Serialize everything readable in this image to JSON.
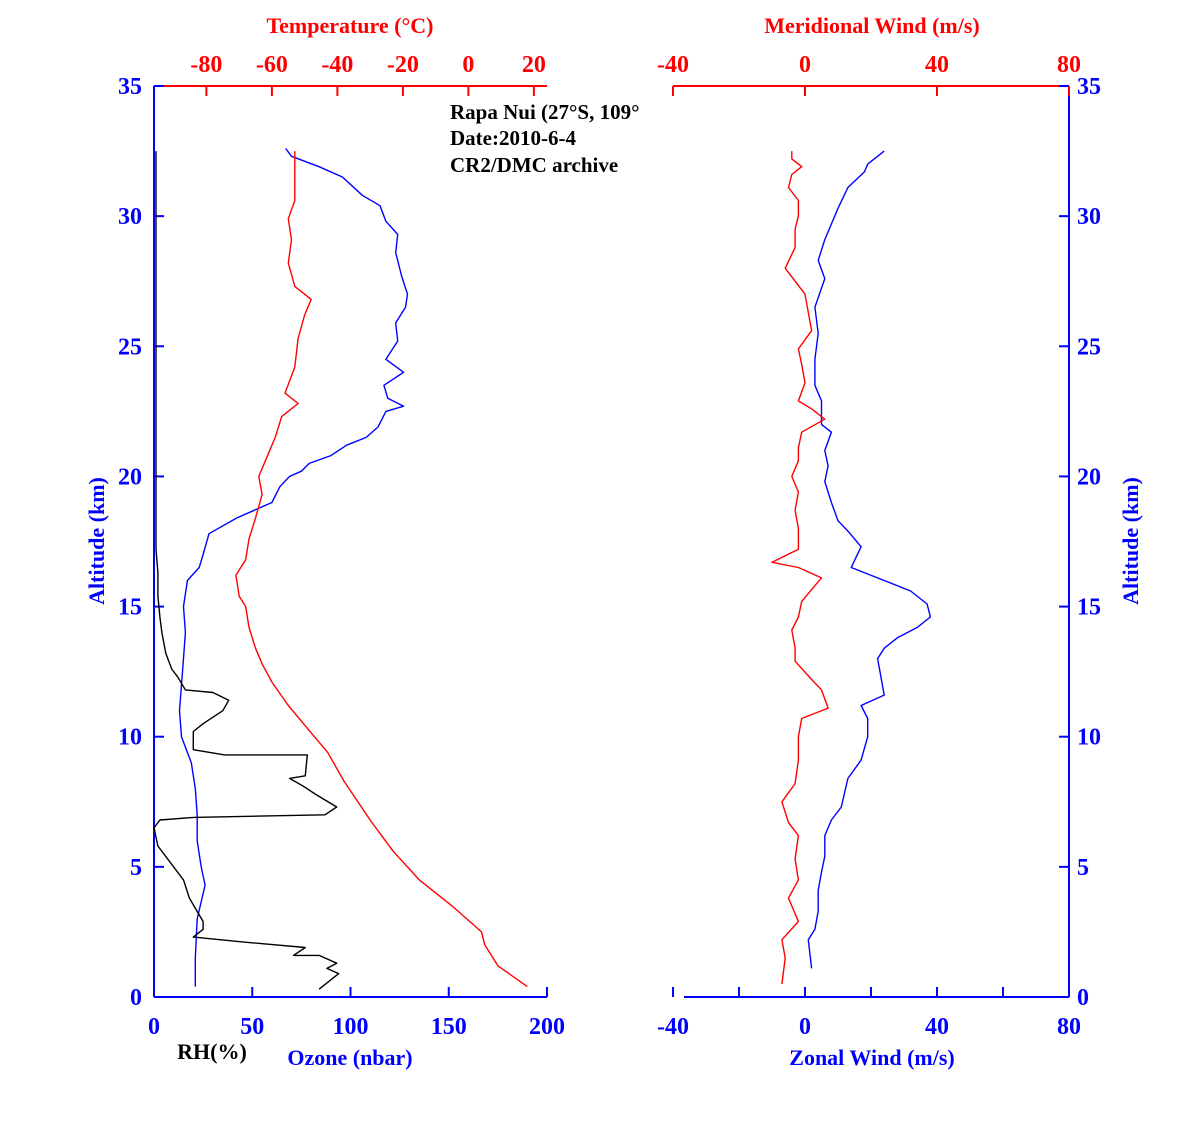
{
  "colors": {
    "blue": "#0000ff",
    "red": "#ff0000",
    "black": "#000000"
  },
  "annotation": [
    "Rapa Nui (27°S, 109°",
    "Date:2010-6-4",
    "CR2/DMC archive"
  ],
  "chart_data": [
    {
      "type": "line",
      "panel": "left",
      "ylabel": "Altitude (km)",
      "ylim": [
        0,
        35
      ],
      "yticks": [
        0,
        5,
        10,
        15,
        20,
        25,
        30,
        35
      ],
      "xlabel_bottom_rh": "RH(%)",
      "xlabel_bottom": "Ozone (nbar)",
      "xlim_bottom": [
        0,
        200
      ],
      "xticks_bottom": [
        0,
        50,
        100,
        150,
        200
      ],
      "xlabel_top": "Temperature (°C)",
      "xlim_top": [
        -96,
        24
      ],
      "xticks_top": [
        -80,
        -60,
        -40,
        -20,
        0,
        20
      ],
      "series": [
        {
          "color": "#0000ff",
          "axis": "bottom",
          "points": [
            [
              21,
              0.4
            ],
            [
              21,
              1.5
            ],
            [
              22,
              3
            ],
            [
              26,
              4.3
            ],
            [
              24,
              5
            ],
            [
              22,
              6
            ],
            [
              22,
              7
            ],
            [
              21,
              8
            ],
            [
              19,
              9
            ],
            [
              14,
              10
            ],
            [
              13,
              11
            ],
            [
              14,
              12
            ],
            [
              15,
              13
            ],
            [
              16,
              14
            ],
            [
              15,
              15
            ],
            [
              17,
              16
            ],
            [
              23,
              16.5
            ],
            [
              25,
              17
            ],
            [
              28,
              17.8
            ],
            [
              42,
              18.4
            ],
            [
              60,
              19
            ],
            [
              64,
              19.6
            ],
            [
              69,
              20
            ],
            [
              75,
              20.2
            ],
            [
              79,
              20.5
            ],
            [
              90,
              20.8
            ],
            [
              98,
              21.2
            ],
            [
              108,
              21.5
            ],
            [
              114,
              21.9
            ],
            [
              118,
              22.5
            ],
            [
              127,
              22.7
            ],
            [
              119,
              23
            ],
            [
              117,
              23.5
            ],
            [
              127,
              24
            ],
            [
              118,
              24.5
            ],
            [
              124,
              25.2
            ],
            [
              123,
              25.9
            ],
            [
              128,
              26.5
            ],
            [
              129,
              27
            ],
            [
              126,
              27.7
            ],
            [
              123,
              28.6
            ],
            [
              124,
              29.3
            ],
            [
              118,
              29.8
            ],
            [
              115,
              30.4
            ],
            [
              106,
              30.8
            ],
            [
              96,
              31.5
            ],
            [
              84,
              31.9
            ],
            [
              70,
              32.3
            ],
            [
              67,
              32.6
            ]
          ]
        },
        {
          "color": "#000000",
          "axis": "bottom",
          "points": [
            [
              84,
              0.3
            ],
            [
              94,
              0.9
            ],
            [
              88,
              1.1
            ],
            [
              93,
              1.3
            ],
            [
              84,
              1.6
            ],
            [
              71,
              1.6
            ],
            [
              77,
              1.9
            ],
            [
              47,
              2.1
            ],
            [
              20,
              2.3
            ],
            [
              25,
              2.6
            ],
            [
              25,
              2.9
            ],
            [
              18,
              3.8
            ],
            [
              15,
              4.5
            ],
            [
              8,
              5.2
            ],
            [
              2,
              5.8
            ],
            [
              0,
              6.5
            ],
            [
              3,
              6.8
            ],
            [
              20,
              6.9
            ],
            [
              87,
              7
            ],
            [
              93,
              7.3
            ],
            [
              82,
              7.8
            ],
            [
              76,
              8.1
            ],
            [
              69,
              8.4
            ],
            [
              77,
              8.5
            ],
            [
              78,
              9.3
            ],
            [
              36,
              9.3
            ],
            [
              20,
              9.5
            ],
            [
              20,
              10.2
            ],
            [
              25,
              10.5
            ],
            [
              35,
              11
            ],
            [
              38,
              11.4
            ],
            [
              30,
              11.7
            ],
            [
              16,
              11.8
            ],
            [
              12,
              12.3
            ],
            [
              9,
              12.6
            ],
            [
              6,
              13.2
            ],
            [
              4,
              14
            ],
            [
              3,
              14.6
            ],
            [
              2,
              15.4
            ],
            [
              2,
              16.3
            ],
            [
              1,
              17.2
            ],
            [
              1,
              32.5
            ]
          ]
        },
        {
          "color": "#ff0000",
          "axis": "top",
          "points": [
            [
              18,
              0.4
            ],
            [
              9,
              1.2
            ],
            [
              5,
              2
            ],
            [
              4,
              2.5
            ],
            [
              -5,
              3.5
            ],
            [
              -15,
              4.5
            ],
            [
              -23,
              5.6
            ],
            [
              -30,
              6.8
            ],
            [
              -38,
              8.3
            ],
            [
              -43,
              9.4
            ],
            [
              -49,
              10.3
            ],
            [
              -55,
              11.2
            ],
            [
              -60,
              12.1
            ],
            [
              -63,
              12.8
            ],
            [
              -65,
              13.4
            ],
            [
              -67,
              14.2
            ],
            [
              -68,
              15
            ],
            [
              -70,
              15.4
            ],
            [
              -71,
              16.2
            ],
            [
              -68,
              16.8
            ],
            [
              -67,
              17.6
            ],
            [
              -65,
              18.4
            ],
            [
              -63,
              19.3
            ],
            [
              -64,
              20
            ],
            [
              -62,
              20.6
            ],
            [
              -59,
              21.5
            ],
            [
              -57,
              22.3
            ],
            [
              -52,
              22.8
            ],
            [
              -56,
              23.2
            ],
            [
              -53,
              24.2
            ],
            [
              -52,
              25.3
            ],
            [
              -50,
              26.2
            ],
            [
              -48,
              26.8
            ],
            [
              -53,
              27.3
            ],
            [
              -55,
              28.2
            ],
            [
              -54,
              29.1
            ],
            [
              -55,
              29.9
            ],
            [
              -53,
              30.6
            ],
            [
              -53,
              31.3
            ],
            [
              -53,
              32.5
            ]
          ]
        }
      ]
    },
    {
      "type": "line",
      "panel": "right",
      "ylabel": "Altitude (km)",
      "ylim": [
        0,
        35
      ],
      "yticks": [
        0,
        5,
        10,
        15,
        20,
        25,
        30,
        35
      ],
      "xlabel_bottom": "Zonal Wind (m/s)",
      "xlim_bottom": [
        -40,
        80
      ],
      "xticks_bottom": [
        -40,
        0,
        40,
        80
      ],
      "xlabel_top": "Meridional Wind (m/s)",
      "xlim_top": [
        -40,
        80
      ],
      "xticks_top": [
        -40,
        0,
        40,
        80
      ],
      "series": [
        {
          "color": "#0000ff",
          "axis": "bottom",
          "points": [
            [
              2,
              1.1
            ],
            [
              1,
              2.2
            ],
            [
              3,
              2.6
            ],
            [
              4,
              3.3
            ],
            [
              4,
              4.1
            ],
            [
              5,
              4.8
            ],
            [
              6,
              5.4
            ],
            [
              6,
              6.2
            ],
            [
              8,
              6.8
            ],
            [
              11,
              7.3
            ],
            [
              13,
              8.4
            ],
            [
              17,
              9.1
            ],
            [
              19,
              10
            ],
            [
              19,
              10.7
            ],
            [
              17,
              11.2
            ],
            [
              24,
              11.6
            ],
            [
              23,
              12.3
            ],
            [
              22,
              13
            ],
            [
              24,
              13.4
            ],
            [
              28,
              13.8
            ],
            [
              34,
              14.2
            ],
            [
              38,
              14.6
            ],
            [
              37,
              15.1
            ],
            [
              32,
              15.6
            ],
            [
              24,
              16
            ],
            [
              14,
              16.5
            ],
            [
              17,
              17.3
            ],
            [
              13,
              17.9
            ],
            [
              10,
              18.3
            ],
            [
              8,
              19
            ],
            [
              6,
              19.8
            ],
            [
              7,
              20.4
            ],
            [
              6,
              21
            ],
            [
              8,
              21.7
            ],
            [
              5,
              22
            ],
            [
              5,
              22.9
            ],
            [
              3,
              23.5
            ],
            [
              3,
              24.5
            ],
            [
              4,
              25.5
            ],
            [
              3,
              26.5
            ],
            [
              6,
              27.6
            ],
            [
              4,
              28.3
            ],
            [
              6,
              29.1
            ],
            [
              8,
              29.7
            ],
            [
              10,
              30.3
            ],
            [
              13,
              31.1
            ],
            [
              18,
              31.7
            ],
            [
              19,
              32
            ],
            [
              24,
              32.5
            ]
          ]
        },
        {
          "color": "#ff0000",
          "axis": "top",
          "points": [
            [
              -7,
              0.5
            ],
            [
              -6,
              1.5
            ],
            [
              -7,
              2.2
            ],
            [
              -2,
              2.9
            ],
            [
              -5,
              3.8
            ],
            [
              -2,
              4.5
            ],
            [
              -3,
              5.3
            ],
            [
              -2,
              6.2
            ],
            [
              -5,
              6.7
            ],
            [
              -7,
              7.5
            ],
            [
              -3,
              8.2
            ],
            [
              -2,
              9.1
            ],
            [
              -2,
              10
            ],
            [
              -1,
              10.7
            ],
            [
              7,
              11.1
            ],
            [
              5,
              11.8
            ],
            [
              2,
              12.2
            ],
            [
              -3,
              12.9
            ],
            [
              -3,
              13.4
            ],
            [
              -4,
              14.1
            ],
            [
              -2,
              14.6
            ],
            [
              -1,
              15.2
            ],
            [
              3,
              15.8
            ],
            [
              5,
              16.1
            ],
            [
              -2,
              16.5
            ],
            [
              -10,
              16.7
            ],
            [
              -2,
              17.2
            ],
            [
              -2,
              18
            ],
            [
              -3,
              18.7
            ],
            [
              -2,
              19.4
            ],
            [
              -4,
              20
            ],
            [
              -2,
              20.6
            ],
            [
              -2,
              21.1
            ],
            [
              -1,
              21.7
            ],
            [
              6,
              22.2
            ],
            [
              2,
              22.6
            ],
            [
              -2,
              22.9
            ],
            [
              0,
              23.6
            ],
            [
              -1,
              24.3
            ],
            [
              -2,
              24.9
            ],
            [
              2,
              25.6
            ],
            [
              1,
              26.3
            ],
            [
              0,
              27
            ],
            [
              -3,
              27.5
            ],
            [
              -6,
              28
            ],
            [
              -3,
              28.8
            ],
            [
              -3,
              29.5
            ],
            [
              -2,
              30
            ],
            [
              -2,
              30.6
            ],
            [
              -5,
              31.1
            ],
            [
              -4,
              31.6
            ],
            [
              -1,
              31.9
            ],
            [
              -4,
              32.2
            ],
            [
              -4,
              32.5
            ]
          ]
        }
      ]
    }
  ]
}
